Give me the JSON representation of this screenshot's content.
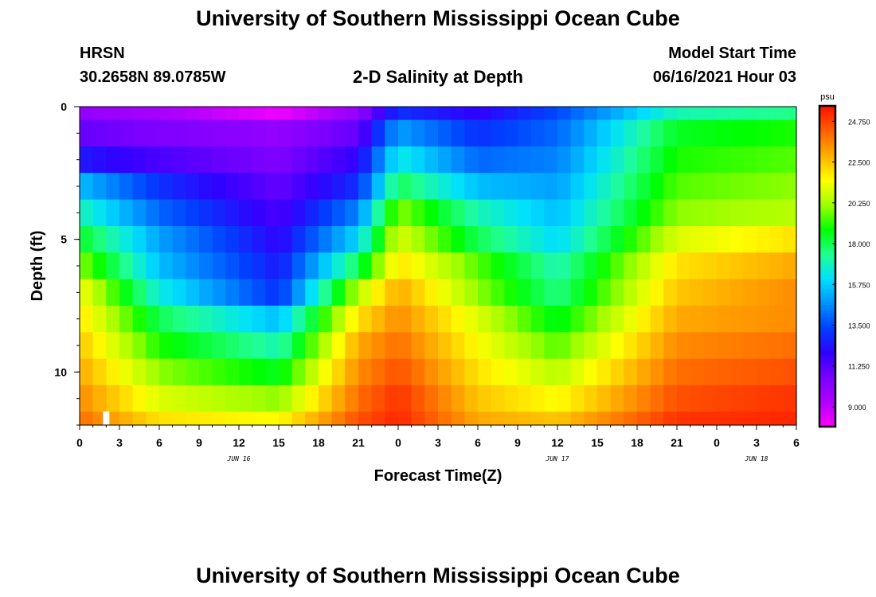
{
  "header": {
    "title": "University of Southern Mississippi Ocean Cube",
    "station": "HRSN",
    "coords": "30.2658N  89.0785W",
    "model_label": "Model Start Time",
    "model_time": "06/16/2021 Hour 03",
    "footer_title": "University of Southern Mississippi Ocean Cube"
  },
  "colors": {
    "palette": [
      "#ff00ff",
      "#b000ff",
      "#7a00ff",
      "#3000ff",
      "#0040ff",
      "#0090ff",
      "#00e0ff",
      "#20ff90",
      "#00ff00",
      "#a0ff00",
      "#ffff00",
      "#ffb000",
      "#ff6000",
      "#ff1000"
    ]
  },
  "chart_data": {
    "type": "heatmap",
    "title": "2-D Salinity at Depth",
    "xlabel": "Forecast Time(Z)",
    "ylabel": "Depth (ft)",
    "x_ticks": [
      "0",
      "3",
      "6",
      "9",
      "12",
      "15",
      "18",
      "21",
      "0",
      "3",
      "6",
      "9",
      "12",
      "15",
      "18",
      "21",
      "0",
      "3",
      "6"
    ],
    "x_range_hours": [
      0,
      54
    ],
    "day_labels": [
      {
        "label": "JUN 16",
        "hour": 12
      },
      {
        "label": "JUN 17",
        "hour": 36
      },
      {
        "label": "JUN 18",
        "hour": 51
      }
    ],
    "y_ticks": [
      0,
      5,
      10
    ],
    "y_range_ft": [
      0,
      12
    ],
    "depth_levels_ft": [
      0,
      1,
      2,
      3,
      4,
      5,
      6,
      7,
      8,
      9,
      10,
      11,
      12
    ],
    "colorbar": {
      "unit": "psu",
      "range": [
        7.9,
        25.6
      ],
      "tick_values": [
        9.0,
        11.25,
        13.5,
        15.75,
        18.0,
        20.25,
        22.5,
        24.75
      ],
      "tick_labels": [
        "9.000",
        "11.250",
        "13.500",
        "15.750",
        "18.000",
        "20.250",
        "22.500",
        "24.750"
      ]
    },
    "current_time_marker_hour": 2,
    "salinity_by_level_psu": [
      {
        "depth_ft": 0,
        "hours": [
          0,
          6,
          15,
          21,
          24,
          30,
          36,
          45,
          54
        ],
        "values": [
          10.0,
          9.5,
          8.2,
          10.0,
          13.0,
          12.0,
          13.5,
          17.0,
          17.5
        ]
      },
      {
        "depth_ft": 1,
        "hours": [
          0,
          6,
          15,
          21,
          24,
          30,
          36,
          45,
          54
        ],
        "values": [
          11.0,
          10.5,
          10.0,
          11.0,
          15.0,
          13.0,
          14.0,
          18.5,
          19.0
        ]
      },
      {
        "depth_ft": 2,
        "hours": [
          0,
          6,
          15,
          21,
          24,
          30,
          36,
          45,
          54
        ],
        "values": [
          12.5,
          11.5,
          10.5,
          12.0,
          16.5,
          14.0,
          14.5,
          19.0,
          19.5
        ]
      },
      {
        "depth_ft": 3,
        "hours": [
          0,
          6,
          15,
          21,
          24,
          30,
          36,
          45,
          54
        ],
        "values": [
          15.5,
          13.0,
          11.0,
          13.0,
          18.0,
          15.5,
          15.0,
          19.5,
          20.0
        ]
      },
      {
        "depth_ft": 4,
        "hours": [
          0,
          6,
          15,
          21,
          24,
          30,
          36,
          45,
          54
        ],
        "values": [
          17.0,
          14.0,
          11.5,
          14.5,
          20.0,
          17.0,
          15.5,
          20.0,
          20.5
        ]
      },
      {
        "depth_ft": 5,
        "hours": [
          0,
          6,
          15,
          21,
          24,
          30,
          36,
          45,
          54
        ],
        "values": [
          18.5,
          15.0,
          12.0,
          16.0,
          21.0,
          18.0,
          16.0,
          21.0,
          22.0
        ]
      },
      {
        "depth_ft": 6,
        "hours": [
          0,
          6,
          15,
          21,
          24,
          30,
          36,
          45,
          54
        ],
        "values": [
          20.0,
          15.5,
          12.5,
          18.0,
          22.0,
          19.5,
          17.0,
          22.0,
          23.0
        ]
      },
      {
        "depth_ft": 7,
        "hours": [
          0,
          6,
          15,
          21,
          24,
          30,
          36,
          45,
          54
        ],
        "values": [
          21.5,
          16.5,
          13.0,
          20.5,
          23.0,
          20.0,
          17.5,
          22.5,
          23.5
        ]
      },
      {
        "depth_ft": 8,
        "hours": [
          0,
          6,
          15,
          21,
          24,
          30,
          36,
          45,
          54
        ],
        "values": [
          22.0,
          18.0,
          15.5,
          22.0,
          23.5,
          21.0,
          18.5,
          23.0,
          23.5
        ]
      },
      {
        "depth_ft": 9,
        "hours": [
          0,
          6,
          15,
          21,
          24,
          30,
          36,
          45,
          54
        ],
        "values": [
          22.5,
          19.0,
          17.0,
          23.0,
          24.0,
          21.5,
          19.5,
          23.5,
          24.0
        ]
      },
      {
        "depth_ft": 10,
        "hours": [
          0,
          6,
          15,
          21,
          24,
          30,
          36,
          45,
          54
        ],
        "values": [
          23.0,
          20.0,
          18.5,
          23.5,
          24.5,
          22.0,
          20.5,
          24.0,
          24.5
        ]
      },
      {
        "depth_ft": 11,
        "hours": [
          0,
          6,
          15,
          21,
          24,
          30,
          36,
          45,
          54
        ],
        "values": [
          23.5,
          21.0,
          20.0,
          24.0,
          25.0,
          22.5,
          21.5,
          24.5,
          25.0
        ]
      },
      {
        "depth_ft": 12,
        "hours": [
          0,
          6,
          15,
          21,
          24,
          30,
          36,
          45,
          54
        ],
        "values": [
          24.0,
          22.0,
          21.5,
          24.5,
          25.2,
          23.0,
          22.5,
          25.0,
          25.2
        ]
      }
    ]
  }
}
